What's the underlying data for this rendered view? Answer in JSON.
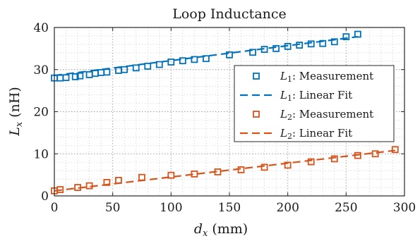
{
  "chart_data": {
    "type": "scatter",
    "title": "Loop Inductance",
    "xlabel": {
      "main": "d",
      "sub": "x",
      "unit": "(mm)"
    },
    "ylabel": {
      "main": "L",
      "sub": "x",
      "unit": "(nH)"
    },
    "xlim": [
      0,
      300
    ],
    "ylim": [
      0,
      40
    ],
    "xticks": [
      0,
      50,
      100,
      150,
      200,
      250,
      300
    ],
    "yticks": [
      0,
      10,
      20,
      30,
      40
    ],
    "grid": "major-and-minor-dotted",
    "legend_position": "right",
    "colors": {
      "L1": "#0072BD",
      "L2": "#D95319",
      "axis": "#262626",
      "grid": "#bdbdbd"
    },
    "series": [
      {
        "name": "L_1: Measurement",
        "legend": {
          "main": "L",
          "sub": "1",
          "rest": ": Measurement"
        },
        "kind": "markers",
        "marker": "square",
        "color": "#0072BD",
        "x": [
          0,
          5,
          10,
          18,
          22,
          30,
          35,
          40,
          45,
          55,
          60,
          70,
          80,
          90,
          100,
          110,
          120,
          130,
          150,
          170,
          180,
          190,
          200,
          210,
          220,
          230,
          240,
          250,
          260
        ],
        "y": [
          28.0,
          28.0,
          28.1,
          28.3,
          28.5,
          28.8,
          29.1,
          29.3,
          29.4,
          29.8,
          30.0,
          30.4,
          30.8,
          31.2,
          31.8,
          32.1,
          32.4,
          32.6,
          33.5,
          34.1,
          34.8,
          35.0,
          35.5,
          35.8,
          36.1,
          36.2,
          36.6,
          37.8,
          38.4
        ]
      },
      {
        "name": "L_1: Linear Fit",
        "legend": {
          "main": "L",
          "sub": "1",
          "rest": ": Linear Fit"
        },
        "kind": "line",
        "dash": "11 6",
        "color": "#0072BD",
        "x": [
          0,
          260
        ],
        "y": [
          28.6,
          37.8
        ]
      },
      {
        "name": "L_2: Measurement",
        "legend": {
          "main": "L",
          "sub": "2",
          "rest": ": Measurement"
        },
        "kind": "markers",
        "marker": "square",
        "color": "#D95319",
        "x": [
          0,
          5,
          20,
          30,
          45,
          55,
          75,
          100,
          120,
          140,
          160,
          180,
          200,
          220,
          240,
          260,
          275,
          292
        ],
        "y": [
          1.2,
          1.5,
          2.0,
          2.4,
          3.2,
          3.7,
          4.4,
          4.9,
          5.2,
          5.7,
          6.2,
          6.8,
          7.3,
          8.1,
          8.8,
          9.6,
          10.0,
          11.0
        ]
      },
      {
        "name": "L_2: Linear Fit",
        "legend": {
          "main": "L",
          "sub": "2",
          "rest": ": Linear Fit"
        },
        "kind": "line",
        "dash": "11 6",
        "color": "#D95319",
        "x": [
          0,
          292
        ],
        "y": [
          1.2,
          10.8
        ]
      }
    ]
  }
}
